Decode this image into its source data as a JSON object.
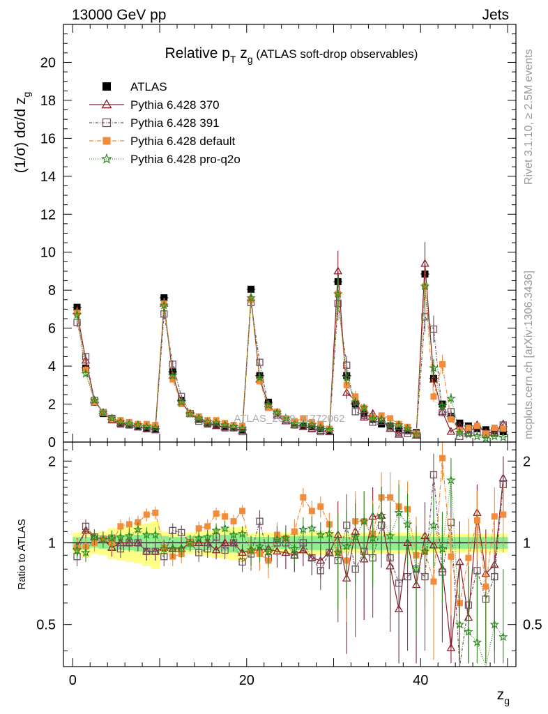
{
  "header": {
    "left": "13000 GeV pp",
    "right": "Jets"
  },
  "side_labels": {
    "rivet": "Rivet 3.1.10, ≥ 2.5M events",
    "mcplots": "mcplots.cern.ch [arXiv:1306.3436]"
  },
  "chart_data": [
    {
      "type": "line",
      "title_parts": {
        "main": "Relative p",
        "sub": "T",
        "mid": " z",
        "sub2": "g",
        "tail": " (ATLAS soft-drop observables)"
      },
      "ylabel": "(1/σ) dσ/d z_g",
      "ylabel_parts": {
        "main": "(1/σ) dσ/d z",
        "sub": "g"
      },
      "watermark": "ATLAS_2019_I1772062",
      "ylim": [
        0,
        22
      ],
      "yticks": [
        "0",
        "2",
        "4",
        "6",
        "8",
        "10",
        "12",
        "14",
        "16",
        "18",
        "20"
      ],
      "grid": false,
      "legend_position": "top-left",
      "x": [
        0.5,
        1.5,
        2.5,
        3.5,
        4.5,
        5.5,
        6.5,
        7.5,
        8.5,
        9.5,
        10.5,
        11.5,
        12.5,
        13.5,
        14.5,
        15.5,
        16.5,
        17.5,
        18.5,
        19.5,
        20.5,
        21.5,
        22.5,
        23.5,
        24.5,
        25.5,
        26.5,
        27.5,
        28.5,
        29.5,
        30.5,
        31.5,
        32.5,
        33.5,
        34.5,
        35.5,
        36.5,
        37.5,
        38.5,
        39.5,
        40.5,
        41.5,
        42.5,
        43.5,
        44.5,
        45.5,
        46.5,
        47.5,
        48.5,
        49.5
      ],
      "series": [
        {
          "name": "ATLAS",
          "color": "#000000",
          "marker": "square-filled",
          "values": [
            7.1,
            3.9,
            2.1,
            1.5,
            1.2,
            1.0,
            0.9,
            0.8,
            0.75,
            0.7,
            7.6,
            3.7,
            2.2,
            1.5,
            1.2,
            1.0,
            0.9,
            0.8,
            0.75,
            0.65,
            8.05,
            3.5,
            2.1,
            1.5,
            1.2,
            1.0,
            0.85,
            0.8,
            0.7,
            0.6,
            8.45,
            3.5,
            2.0,
            1.5,
            1.2,
            0.95,
            0.85,
            0.7,
            0.6,
            0.5,
            8.85,
            3.35,
            2.0,
            1.35,
            1.0,
            0.85,
            0.7,
            0.65,
            0.6,
            0.55
          ]
        },
        {
          "name": "Pythia 6.428 370",
          "color": "#8b1a2b",
          "marker": "triangle-open",
          "values": [
            6.9,
            4.3,
            2.2,
            1.55,
            1.15,
            1.0,
            0.9,
            0.8,
            0.7,
            0.65,
            7.3,
            3.5,
            2.1,
            1.5,
            1.2,
            1.0,
            0.85,
            0.8,
            0.75,
            0.6,
            7.6,
            3.3,
            2.0,
            1.4,
            1.1,
            0.9,
            0.8,
            0.7,
            0.6,
            0.55,
            9.0,
            2.6,
            2.2,
            1.3,
            1.5,
            1.2,
            0.7,
            0.4,
            0.6,
            0.35,
            9.4,
            3.3,
            1.6,
            0.55,
            0.85,
            0.45,
            0.9,
            0.5,
            0.5,
            0.95
          ]
        },
        {
          "name": "Pythia 6.428 391",
          "color": "#6b5060",
          "marker": "square-open",
          "values": [
            6.3,
            4.5,
            2.2,
            1.55,
            1.25,
            0.95,
            0.9,
            0.8,
            0.7,
            0.65,
            6.75,
            4.1,
            2.4,
            1.5,
            1.1,
            0.95,
            0.95,
            0.75,
            0.75,
            0.55,
            7.35,
            4.2,
            1.85,
            1.5,
            1.2,
            0.9,
            0.85,
            0.7,
            0.55,
            0.55,
            7.3,
            4.05,
            1.6,
            1.4,
            1.05,
            1.1,
            0.75,
            0.5,
            0.45,
            0.4,
            6.6,
            5.95,
            1.55,
            1.6,
            0.3,
            0.5,
            0.55,
            0.4,
            0.45,
            0.9
          ]
        },
        {
          "name": "Pythia 6.428 default",
          "color": "#f28c3a",
          "marker": "square-filled",
          "values": [
            6.8,
            3.8,
            2.1,
            1.55,
            1.2,
            1.15,
            1.05,
            0.95,
            0.95,
            0.9,
            7.3,
            3.3,
            2.0,
            1.5,
            1.35,
            1.15,
            1.15,
            1.0,
            0.9,
            0.85,
            7.5,
            3.2,
            1.8,
            1.6,
            1.25,
            1.1,
            1.25,
            1.05,
            0.95,
            0.7,
            7.8,
            3.0,
            2.4,
            1.8,
            1.3,
            1.4,
            1.25,
            0.95,
            0.8,
            0.45,
            8.2,
            2.4,
            4.1,
            1.2,
            0.6,
            0.75,
            0.85,
            0.45,
            0.75,
            0.7
          ]
        },
        {
          "name": "Pythia 6.428 pro-q2o",
          "color": "#2a8a1e",
          "marker": "star-open",
          "values": [
            6.7,
            3.6,
            2.2,
            1.55,
            1.25,
            1.05,
            0.95,
            0.9,
            0.8,
            0.75,
            7.2,
            3.5,
            2.1,
            1.5,
            1.25,
            1.05,
            1.0,
            0.9,
            0.8,
            0.7,
            7.6,
            3.4,
            1.95,
            1.55,
            1.25,
            0.95,
            0.95,
            0.9,
            0.75,
            0.65,
            7.8,
            3.4,
            2.1,
            1.8,
            1.25,
            1.2,
            0.9,
            0.9,
            0.7,
            0.4,
            8.2,
            3.9,
            1.9,
            2.3,
            0.5,
            0.4,
            0.3,
            0.2,
            0.3,
            0.25
          ]
        }
      ]
    },
    {
      "type": "line",
      "ylabel": "Ratio to ATLAS",
      "ylim": [
        0.35,
        2.35
      ],
      "yticks": [
        "0.5",
        "1",
        "2"
      ],
      "xlabel_parts": {
        "main": "z",
        "sub": "g"
      },
      "xticks": [
        "0",
        "20",
        "40"
      ],
      "xlim": [
        0,
        50
      ],
      "reference_line": 1,
      "band_color_inner": "#90ee90",
      "band_color_outer": "#ffff88",
      "band_inner": [
        0.05,
        0.05,
        0.04,
        0.05,
        0.06,
        0.06,
        0.06,
        0.07,
        0.08,
        0.08,
        0.06,
        0.05,
        0.05,
        0.06,
        0.06,
        0.06,
        0.07,
        0.07,
        0.08,
        0.08,
        0.05,
        0.05,
        0.05,
        0.05,
        0.05,
        0.06,
        0.06,
        0.06,
        0.06,
        0.06,
        0.05,
        0.05,
        0.05,
        0.06,
        0.06,
        0.06,
        0.06,
        0.06,
        0.06,
        0.06,
        0.05,
        0.05,
        0.05,
        0.05,
        0.05,
        0.05,
        0.05,
        0.05,
        0.05,
        0.05
      ],
      "band_outer": [
        0.09,
        0.12,
        0.09,
        0.1,
        0.13,
        0.14,
        0.15,
        0.16,
        0.18,
        0.2,
        0.1,
        0.08,
        0.08,
        0.09,
        0.1,
        0.11,
        0.12,
        0.13,
        0.14,
        0.15,
        0.08,
        0.09,
        0.09,
        0.09,
        0.09,
        0.09,
        0.09,
        0.1,
        0.1,
        0.1,
        0.08,
        0.08,
        0.08,
        0.09,
        0.09,
        0.09,
        0.09,
        0.09,
        0.09,
        0.09,
        0.08,
        0.08,
        0.08,
        0.08,
        0.08,
        0.08,
        0.08,
        0.08,
        0.08,
        0.08
      ],
      "series": [
        {
          "name": "Pythia 6.428 370",
          "values": [
            0.97,
            1.11,
            1.05,
            1.03,
            0.96,
            1.0,
            1.0,
            1.0,
            0.93,
            0.93,
            0.96,
            0.95,
            0.95,
            1.0,
            1.0,
            1.0,
            0.94,
            1.0,
            1.0,
            0.92,
            0.94,
            0.94,
            0.95,
            0.93,
            0.92,
            0.9,
            0.94,
            0.88,
            0.86,
            0.92,
            1.07,
            0.74,
            1.1,
            0.87,
            1.25,
            1.26,
            0.82,
            0.57,
            1.0,
            0.7,
            1.06,
            0.98,
            0.8,
            0.41,
            0.85,
            0.53,
            1.29,
            0.77,
            0.83,
            1.73
          ]
        },
        {
          "name": "Pythia 6.428 391",
          "values": [
            0.89,
            1.15,
            1.05,
            1.03,
            1.04,
            0.95,
            1.0,
            1.0,
            0.93,
            0.93,
            0.89,
            1.11,
            1.09,
            1.0,
            0.92,
            0.95,
            1.05,
            0.94,
            1.0,
            0.85,
            0.91,
            1.2,
            0.88,
            1.0,
            1.0,
            0.9,
            1.0,
            0.88,
            0.79,
            0.92,
            0.86,
            1.16,
            0.8,
            0.93,
            0.88,
            1.16,
            0.88,
            0.71,
            0.75,
            0.8,
            0.75,
            1.78,
            0.78,
            1.19,
            0.3,
            0.59,
            0.79,
            0.62,
            0.75,
            1.64
          ]
        },
        {
          "name": "Pythia 6.428 default",
          "values": [
            0.96,
            0.97,
            1.0,
            1.03,
            1.0,
            1.15,
            1.17,
            1.19,
            1.27,
            1.29,
            0.96,
            0.89,
            0.91,
            1.0,
            1.13,
            1.15,
            1.28,
            1.25,
            1.2,
            1.31,
            0.93,
            0.91,
            0.86,
            1.07,
            1.04,
            1.1,
            1.47,
            1.31,
            1.36,
            1.17,
            0.92,
            0.86,
            1.2,
            1.2,
            1.08,
            1.47,
            1.47,
            1.36,
            1.33,
            0.9,
            0.93,
            0.72,
            2.05,
            0.89,
            0.6,
            0.88,
            1.21,
            0.69,
            1.25,
            1.27
          ]
        },
        {
          "name": "Pythia 6.428 pro-q2o",
          "values": [
            0.94,
            0.92,
            1.05,
            1.03,
            1.04,
            1.05,
            1.06,
            1.12,
            1.07,
            1.07,
            0.95,
            0.95,
            0.95,
            1.0,
            1.04,
            1.05,
            1.11,
            1.13,
            1.07,
            1.08,
            0.94,
            0.97,
            0.93,
            1.03,
            1.04,
            0.95,
            1.12,
            1.13,
            1.07,
            1.08,
            0.92,
            0.97,
            1.05,
            1.2,
            1.04,
            1.26,
            1.06,
            1.29,
            1.17,
            0.8,
            0.93,
            1.16,
            0.95,
            1.7,
            0.5,
            0.47,
            0.43,
            0.31,
            0.5,
            0.45
          ]
        }
      ]
    }
  ]
}
